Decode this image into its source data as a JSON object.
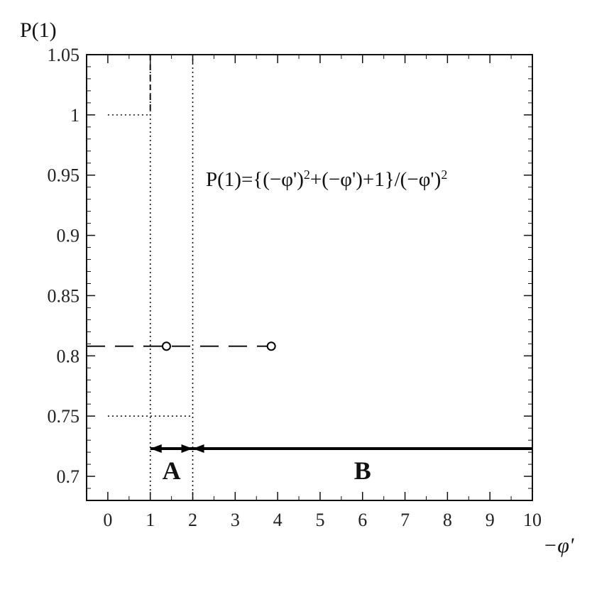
{
  "chart_data": {
    "type": "line",
    "ylabel": "P(1)",
    "xlabel": "−φ'",
    "xlim": [
      -0.5,
      10
    ],
    "ylim": [
      0.68,
      1.05
    ],
    "x_ticks": [
      0,
      1,
      2,
      3,
      4,
      5,
      6,
      7,
      8,
      9,
      10
    ],
    "y_ticks": [
      0.7,
      0.75,
      0.8,
      0.85,
      0.9,
      0.95,
      1,
      1.05
    ],
    "y_tick_labels": [
      "0.7",
      "0.75",
      "0.8",
      "0.85",
      "0.9",
      "0.95",
      "1",
      "1.05"
    ],
    "formula": {
      "lhs": "P(1)={(−φ')",
      "sup1": "2",
      "mid": "+(−φ')+1}/(−φ')",
      "sup2": "2"
    },
    "curve": {
      "expression": "P(1) = (u^2 + u + 1) / u^2, u = −φ'",
      "domain": [
        1,
        10
      ]
    },
    "reference_lines": {
      "vertical_dotted_x": [
        1,
        2
      ],
      "horizontal_dotted": [
        {
          "y": 1,
          "x_from": 0,
          "x_to": 1
        },
        {
          "y": 0.75,
          "x_from": 0,
          "x_to": 2
        }
      ],
      "horizontal_dashed": {
        "y": 0.808,
        "x_from": -0.5,
        "x_to": 3.85
      }
    },
    "marked_points": [
      {
        "x": 1.38,
        "y": 0.808
      },
      {
        "x": 3.85,
        "y": 0.808
      }
    ],
    "regions": [
      {
        "label": "A",
        "x_from": 1,
        "x_to": 2
      },
      {
        "label": "B",
        "x_from": 2,
        "x_to": 10
      }
    ],
    "region_arrow_y": 0.723
  }
}
